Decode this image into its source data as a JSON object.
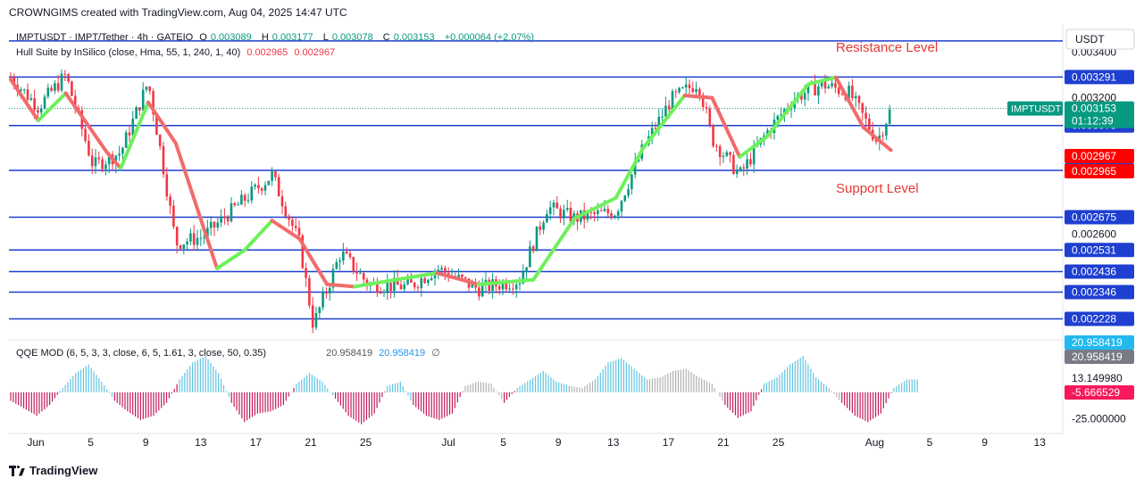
{
  "caption": "CROWNGIMS created with TradingView.com, Aug 04, 2025 14:47 UTC",
  "symbol_line": {
    "title": "IMPTUSDT · IMPT/Tether · 4h · GATEIO",
    "o_label": "O",
    "o": "0.003089",
    "h_label": "H",
    "h": "0.003177",
    "l_label": "L",
    "l": "0.003078",
    "c_label": "C",
    "c": "0.003153",
    "change": "+0.000064 (+2.07%)"
  },
  "hull_line": {
    "title": "Hull Suite by InSilico (close, Hma, 55, 1, 240, 1, 40)",
    "v1": "0.002965",
    "v2": "0.002967"
  },
  "qqe_line": {
    "title": "QQE MOD (6, 5, 3, 3, close, 6, 5, 1.61, 3, close, 50, 0.35)",
    "v1": "20.958419",
    "v2": "20.958419",
    "v3": "∅"
  },
  "annotations": {
    "resistance": "Resistance Level",
    "support": "Support Level"
  },
  "footer": "TradingView",
  "colors": {
    "level": "#1e3fd0",
    "up": "#089981",
    "down": "#f23645",
    "hull_up": "#6ef05a",
    "hull_down": "#f26b6b",
    "qqe_pos": "#5fc4e0",
    "qqe_neg": "#c2185b",
    "qqe_neutral": "#b0b0b0",
    "annotation": "#e53935"
  },
  "chart_data": [
    {
      "type": "candlestick",
      "title": "IMPTUSDT · IMPT/Tether · 4h · GATEIO",
      "currency": "USDT",
      "x_ticks": [
        "Jun",
        "5",
        "9",
        "13",
        "17",
        "21",
        "25",
        "Jul",
        "5",
        "9",
        "13",
        "17",
        "21",
        "25",
        "Aug",
        "5",
        "9",
        "13"
      ],
      "y_ticks": [
        "0.003400",
        "0.003200",
        "0.002600"
      ],
      "ylim": [
        0.00214,
        0.00352
      ],
      "horizontal_levels": [
        "0.003291",
        "0.003078",
        "0.002881",
        "0.002675",
        "0.002531",
        "0.002436",
        "0.002346",
        "0.002228"
      ],
      "top_line": 0.00345,
      "last_price": {
        "label": "IMPTUSDT",
        "value": "0.003153",
        "countdown": "01:12:39"
      },
      "hull_labels": [
        "0.002967",
        "0.002965"
      ],
      "price_path": [
        [
          "Jun",
          0.00329
        ],
        [
          "Jun 3",
          0.00316
        ],
        [
          "Jun 5",
          0.0033
        ],
        [
          "Jun 7",
          0.0029
        ],
        [
          "Jun 9",
          0.00296
        ],
        [
          "Jun 11",
          0.00327
        ],
        [
          "Jun 12",
          0.00293
        ],
        [
          "Jun 13",
          0.00256
        ],
        [
          "Jun 15",
          0.00259
        ],
        [
          "Jun 17",
          0.0027
        ],
        [
          "Jun 20",
          0.00286
        ],
        [
          "Jun 22",
          0.00256
        ],
        [
          "Jun 23",
          0.0022
        ],
        [
          "Jun 25",
          0.00252
        ],
        [
          "Jun 27",
          0.00238
        ],
        [
          "Jun 30",
          0.00237
        ],
        [
          "Jul 2",
          0.00245
        ],
        [
          "Jul 5",
          0.00236
        ],
        [
          "Jul 8",
          0.0024
        ],
        [
          "Jul 10",
          0.00272
        ],
        [
          "Jul 12",
          0.00267
        ],
        [
          "Jul 15",
          0.0027
        ],
        [
          "Jul 17",
          0.00298
        ],
        [
          "Jul 19",
          0.00319
        ],
        [
          "Jul 21",
          0.00327
        ],
        [
          "Jul 22",
          0.00302
        ],
        [
          "Jul 24",
          0.00286
        ],
        [
          "Jul 26",
          0.00305
        ],
        [
          "Jul 28",
          0.0032
        ],
        [
          "Jul 30",
          0.00326
        ],
        [
          "Aug 1",
          0.00322
        ],
        [
          "Aug 3",
          0.00301
        ],
        [
          "Aug 4",
          0.00315
        ]
      ],
      "hull_path": [
        [
          "Jun",
          0.00328
        ],
        [
          "Jun 3",
          0.0031
        ],
        [
          "Jun 5",
          0.00322
        ],
        [
          "Jun 8",
          0.00296
        ],
        [
          "Jun 9",
          0.00289
        ],
        [
          "Jun 11",
          0.00318
        ],
        [
          "Jun 13",
          0.003
        ],
        [
          "Jun 16",
          0.00245
        ],
        [
          "Jun 18",
          0.00253
        ],
        [
          "Jun 20",
          0.00266
        ],
        [
          "Jun 22",
          0.00258
        ],
        [
          "Jun 24",
          0.00238
        ],
        [
          "Jun 26",
          0.00237
        ],
        [
          "Jul 2",
          0.00243
        ],
        [
          "Jul 5",
          0.00238
        ],
        [
          "Jul 9",
          0.0024
        ],
        [
          "Jul 12",
          0.00267
        ],
        [
          "Jul 15",
          0.00276
        ],
        [
          "Jul 17",
          0.00298
        ],
        [
          "Jul 20",
          0.00321
        ],
        [
          "Jul 22",
          0.0032
        ],
        [
          "Jul 24",
          0.00294
        ],
        [
          "Jul 26",
          0.00303
        ],
        [
          "Jul 29",
          0.00326
        ],
        [
          "Jul 31",
          0.00329
        ],
        [
          "Aug 2",
          0.00307
        ],
        [
          "Aug 4",
          0.00297
        ]
      ]
    },
    {
      "type": "bar",
      "title": "QQE MOD (6, 5, 3, 3, close, 6, 5, 1.61, 3, close, 50, 0.35)",
      "y_ticks": [
        "13.149980",
        "-25.000000"
      ],
      "ylim": [
        -32,
        35
      ],
      "scale_labels": [
        {
          "value": "20.958419",
          "style": "cyan"
        },
        {
          "value": "20.958419",
          "style": "gray"
        },
        {
          "value": "-5.666529",
          "style": "pink"
        }
      ],
      "values": [
        -8,
        -15,
        -22,
        -12,
        4,
        18,
        26,
        10,
        -8,
        -18,
        -26,
        -22,
        -10,
        12,
        28,
        34,
        18,
        -10,
        -28,
        -20,
        -18,
        -12,
        8,
        18,
        10,
        -6,
        -22,
        -30,
        -20,
        6,
        10,
        -12,
        -22,
        -26,
        -20,
        6,
        10,
        8,
        -10,
        4,
        12,
        20,
        10,
        6,
        4,
        12,
        28,
        32,
        22,
        12,
        14,
        20,
        22,
        14,
        8,
        -12,
        -24,
        -18,
        8,
        14,
        26,
        34,
        14,
        4,
        -10,
        -22,
        -28,
        -20,
        4,
        12
      ],
      "value_style": [
        2,
        2,
        2,
        2,
        1,
        1,
        1,
        1,
        2,
        2,
        2,
        2,
        2,
        1,
        1,
        1,
        1,
        2,
        2,
        2,
        2,
        2,
        1,
        1,
        1,
        2,
        2,
        2,
        2,
        1,
        1,
        2,
        2,
        2,
        2,
        0,
        0,
        0,
        2,
        1,
        1,
        1,
        1,
        0,
        0,
        1,
        1,
        1,
        1,
        0,
        0,
        0,
        0,
        0,
        0,
        2,
        2,
        2,
        1,
        1,
        1,
        1,
        1,
        0,
        2,
        2,
        2,
        2,
        1,
        1
      ]
    }
  ]
}
